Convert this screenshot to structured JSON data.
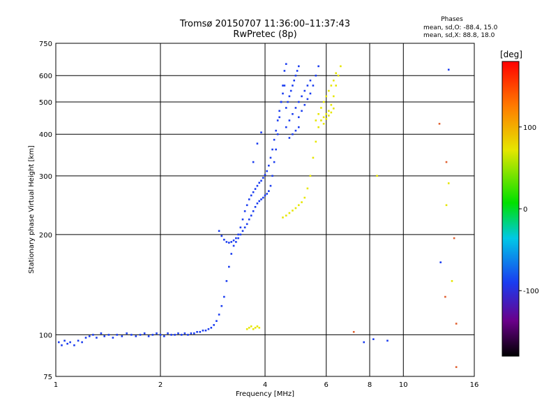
{
  "chart_data": {
    "type": "scatter",
    "title": "Tromsø 20150707 11:36:00–11:37:43",
    "subtitle": "RwPretec (8p)",
    "xlabel": "Frequency [MHz]",
    "ylabel": "Stationary phase Virtual Height [km]",
    "x_scale": "log",
    "y_scale": "log",
    "xlim": [
      1,
      16
    ],
    "ylim": [
      75,
      750
    ],
    "grid": true,
    "x_ticks": [
      1,
      2,
      4,
      6,
      8,
      10,
      16
    ],
    "x_tick_labels": [
      "1",
      "2",
      "4",
      "6",
      "8",
      "10",
      "16"
    ],
    "y_ticks": [
      75,
      100,
      200,
      300,
      400,
      500,
      600,
      750
    ],
    "y_tick_labels": [
      "75",
      "100",
      "200",
      "300",
      "400",
      "500",
      "600",
      "750"
    ],
    "phase_stats": {
      "heading": "Phases",
      "line_o": "mean, sd,O: -88.4, 15.0",
      "line_x": "mean, sd,X:  88.8, 18.0"
    },
    "colorbar": {
      "label": "[deg]",
      "range": [
        -180,
        180
      ],
      "ticks": [
        100,
        0,
        -100
      ],
      "tick_labels": [
        "100",
        "0",
        "-100"
      ]
    },
    "series": [
      {
        "mode": "O",
        "color": "#1a3cf0",
        "points": [
          [
            1.02,
            95
          ],
          [
            1.04,
            93
          ],
          [
            1.06,
            96
          ],
          [
            1.08,
            94
          ],
          [
            1.1,
            95
          ],
          [
            1.13,
            93
          ],
          [
            1.16,
            96
          ],
          [
            1.19,
            95
          ],
          [
            1.22,
            98
          ],
          [
            1.25,
            99
          ],
          [
            1.28,
            100
          ],
          [
            1.31,
            98
          ],
          [
            1.35,
            101
          ],
          [
            1.38,
            99
          ],
          [
            1.42,
            100
          ],
          [
            1.46,
            98
          ],
          [
            1.5,
            100
          ],
          [
            1.55,
            99
          ],
          [
            1.6,
            101
          ],
          [
            1.65,
            100
          ],
          [
            1.7,
            99
          ],
          [
            1.75,
            100
          ],
          [
            1.8,
            101
          ],
          [
            1.85,
            99
          ],
          [
            1.9,
            100
          ],
          [
            1.95,
            101
          ],
          [
            2.0,
            100
          ],
          [
            2.05,
            99
          ],
          [
            2.1,
            101
          ],
          [
            2.15,
            100
          ],
          [
            2.2,
            100
          ],
          [
            2.25,
            101
          ],
          [
            2.3,
            100
          ],
          [
            2.35,
            101
          ],
          [
            2.4,
            100
          ],
          [
            2.45,
            101
          ],
          [
            2.5,
            101
          ],
          [
            2.55,
            102
          ],
          [
            2.6,
            102
          ],
          [
            2.65,
            103
          ],
          [
            2.7,
            103
          ],
          [
            2.75,
            104
          ],
          [
            2.8,
            105
          ],
          [
            2.85,
            107
          ],
          [
            2.9,
            110
          ],
          [
            2.95,
            115
          ],
          [
            3.0,
            122
          ],
          [
            3.05,
            130
          ],
          [
            3.1,
            145
          ],
          [
            3.15,
            160
          ],
          [
            3.2,
            175
          ],
          [
            3.25,
            185
          ],
          [
            3.3,
            190
          ],
          [
            3.35,
            195
          ],
          [
            3.4,
            200
          ],
          [
            3.45,
            205
          ],
          [
            3.5,
            210
          ],
          [
            3.55,
            215
          ],
          [
            3.6,
            222
          ],
          [
            3.65,
            228
          ],
          [
            3.7,
            235
          ],
          [
            3.75,
            242
          ],
          [
            3.8,
            248
          ],
          [
            3.85,
            252
          ],
          [
            3.9,
            255
          ],
          [
            3.95,
            258
          ],
          [
            4.0,
            262
          ],
          [
            4.05,
            265
          ],
          [
            4.1,
            270
          ],
          [
            4.15,
            280
          ],
          [
            4.2,
            300
          ],
          [
            4.25,
            330
          ],
          [
            4.3,
            360
          ],
          [
            4.35,
            400
          ],
          [
            4.4,
            450
          ],
          [
            4.45,
            500
          ],
          [
            4.5,
            560
          ],
          [
            4.55,
            620
          ],
          [
            4.6,
            650
          ],
          [
            2.95,
            205
          ],
          [
            3.0,
            198
          ],
          [
            3.05,
            193
          ],
          [
            3.1,
            190
          ],
          [
            3.15,
            189
          ],
          [
            3.2,
            190
          ],
          [
            3.25,
            192
          ],
          [
            3.3,
            195
          ],
          [
            3.35,
            200
          ],
          [
            3.4,
            210
          ],
          [
            3.45,
            222
          ],
          [
            3.5,
            235
          ],
          [
            3.55,
            245
          ],
          [
            3.6,
            255
          ],
          [
            3.65,
            262
          ],
          [
            3.7,
            268
          ],
          [
            3.75,
            274
          ],
          [
            3.8,
            280
          ],
          [
            3.85,
            286
          ],
          [
            3.9,
            290
          ],
          [
            3.95,
            296
          ],
          [
            4.0,
            302
          ],
          [
            4.05,
            310
          ],
          [
            4.1,
            322
          ],
          [
            4.15,
            340
          ],
          [
            4.2,
            360
          ],
          [
            4.25,
            385
          ],
          [
            4.3,
            410
          ],
          [
            4.35,
            440
          ],
          [
            4.4,
            470
          ],
          [
            4.45,
            500
          ],
          [
            4.5,
            530
          ],
          [
            4.55,
            560
          ],
          [
            4.6,
            480
          ],
          [
            4.65,
            500
          ],
          [
            4.7,
            520
          ],
          [
            4.75,
            540
          ],
          [
            4.8,
            560
          ],
          [
            4.85,
            580
          ],
          [
            4.9,
            600
          ],
          [
            4.95,
            620
          ],
          [
            5.0,
            640
          ],
          [
            4.6,
            420
          ],
          [
            4.7,
            440
          ],
          [
            4.8,
            460
          ],
          [
            4.9,
            480
          ],
          [
            5.0,
            500
          ],
          [
            5.1,
            520
          ],
          [
            5.2,
            540
          ],
          [
            5.3,
            560
          ],
          [
            5.4,
            580
          ],
          [
            5.0,
            450
          ],
          [
            5.1,
            470
          ],
          [
            5.2,
            490
          ],
          [
            5.3,
            510
          ],
          [
            5.4,
            530
          ],
          [
            5.5,
            560
          ],
          [
            5.6,
            600
          ],
          [
            5.7,
            640
          ],
          [
            4.7,
            390
          ],
          [
            4.8,
            400
          ],
          [
            4.9,
            410
          ],
          [
            5.0,
            420
          ],
          [
            3.7,
            330
          ],
          [
            3.8,
            375
          ],
          [
            3.9,
            405
          ],
          [
            7.7,
            95
          ],
          [
            8.2,
            97
          ],
          [
            9.0,
            96
          ],
          [
            12.8,
            165
          ],
          [
            13.5,
            625
          ]
        ]
      },
      {
        "mode": "X",
        "color": "#e6e600",
        "points": [
          [
            3.55,
            104
          ],
          [
            3.6,
            105
          ],
          [
            3.65,
            106
          ],
          [
            3.7,
            104
          ],
          [
            3.75,
            105
          ],
          [
            3.8,
            106
          ],
          [
            3.85,
            105
          ],
          [
            4.5,
            225
          ],
          [
            4.6,
            228
          ],
          [
            4.7,
            232
          ],
          [
            4.8,
            236
          ],
          [
            4.9,
            240
          ],
          [
            5.0,
            245
          ],
          [
            5.1,
            250
          ],
          [
            5.2,
            258
          ],
          [
            5.3,
            275
          ],
          [
            5.4,
            300
          ],
          [
            5.5,
            340
          ],
          [
            5.6,
            380
          ],
          [
            5.7,
            420
          ],
          [
            5.8,
            440
          ],
          [
            5.9,
            450
          ],
          [
            6.0,
            460
          ],
          [
            6.1,
            470
          ],
          [
            6.2,
            490
          ],
          [
            6.3,
            520
          ],
          [
            6.4,
            560
          ],
          [
            6.5,
            600
          ],
          [
            6.6,
            640
          ],
          [
            5.6,
            440
          ],
          [
            5.7,
            460
          ],
          [
            5.8,
            480
          ],
          [
            5.9,
            500
          ],
          [
            6.0,
            520
          ],
          [
            6.1,
            540
          ],
          [
            6.2,
            560
          ],
          [
            6.3,
            580
          ],
          [
            6.4,
            610
          ],
          [
            5.9,
            430
          ],
          [
            6.0,
            445
          ],
          [
            6.1,
            455
          ],
          [
            6.2,
            465
          ],
          [
            6.3,
            478
          ],
          [
            8.4,
            300
          ],
          [
            13.3,
            245
          ],
          [
            13.5,
            285
          ],
          [
            13.8,
            145
          ]
        ]
      },
      {
        "mode": "other",
        "color": "#e06030",
        "points": [
          [
            7.2,
            102
          ],
          [
            12.7,
            430
          ],
          [
            13.3,
            330
          ],
          [
            13.2,
            130
          ],
          [
            14.2,
            108
          ],
          [
            14.2,
            80
          ],
          [
            14.0,
            195
          ]
        ]
      }
    ]
  }
}
